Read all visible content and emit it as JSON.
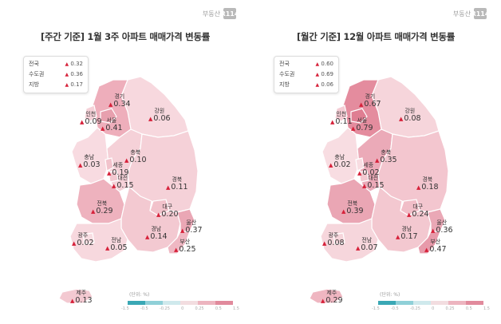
{
  "brand": {
    "text": "부동산",
    "logo": "R114"
  },
  "legend": {
    "unit": "(단위: %)",
    "ticks": [
      "-1.5",
      "-0.5",
      "-0.25",
      "0",
      "0.25",
      "0.5",
      "1.5"
    ],
    "colors": [
      "#3aa8b5",
      "#8fd0d8",
      "#cfe9ec",
      "#f2dde0",
      "#ecb4bf",
      "#e18a9c"
    ]
  },
  "maps": [
    {
      "title": "[주간 기준] 1월 3주 아파트 매매가격 변동률",
      "summary": [
        {
          "label": "전국",
          "value": "0.32"
        },
        {
          "label": "수도권",
          "value": "0.36"
        },
        {
          "label": "지방",
          "value": "0.17"
        }
      ],
      "regions": {
        "gyeonggi": {
          "name": "경기",
          "value": "0.34"
        },
        "incheon": {
          "name": "인천",
          "value": "0.09"
        },
        "seoul": {
          "name": "서울",
          "value": "0.41"
        },
        "gangwon": {
          "name": "강원",
          "value": "0.06"
        },
        "chungbuk": {
          "name": "충북",
          "value": "0.10"
        },
        "chungnam": {
          "name": "충남",
          "value": "0.03"
        },
        "sejong": {
          "name": "세종",
          "value": "0.19"
        },
        "daejeon": {
          "name": "대전",
          "value": "0.15"
        },
        "gyeongbuk": {
          "name": "경북",
          "value": "0.11"
        },
        "jeonbuk": {
          "name": "전북",
          "value": "0.29"
        },
        "daegu": {
          "name": "대구",
          "value": "0.20"
        },
        "ulsan": {
          "name": "울산",
          "value": "0.37"
        },
        "gyeongnam": {
          "name": "경남",
          "value": "0.14"
        },
        "gwangju": {
          "name": "광주",
          "value": "0.02"
        },
        "jeonnam": {
          "name": "전남",
          "value": "0.05"
        },
        "busan": {
          "name": "부산",
          "value": "0.25"
        },
        "jeju": {
          "name": "제주",
          "value": "0.13"
        }
      },
      "colors": {
        "gyeonggi": "#eeaebb",
        "seoul": "#e7a0ae",
        "incheon": "#f5d1d8",
        "gangwon": "#f7d8de",
        "chungbuk": "#f5d1d8",
        "chungnam": "#f8dbe1",
        "sejong": "#f2c3cc",
        "daejeon": "#f3c8d0",
        "gyeongbuk": "#f5d1d8",
        "jeonbuk": "#eeb2be",
        "daegu": "#f2c2cb",
        "ulsan": "#eaa7b5",
        "gyeongnam": "#f3c9d1",
        "gwangju": "#f8dde2",
        "jeonnam": "#f7d8de",
        "busan": "#efb8c3",
        "jeju": "#f3c9d1"
      }
    },
    {
      "title": "[월간 기준] 12월 아파트 매매가격 변동률",
      "summary": [
        {
          "label": "전국",
          "value": "0.60"
        },
        {
          "label": "수도권",
          "value": "0.69"
        },
        {
          "label": "지방",
          "value": "0.06"
        }
      ],
      "regions": {
        "gyeonggi": {
          "name": "경기",
          "value": "0.67"
        },
        "incheon": {
          "name": "인천",
          "value": "0.11"
        },
        "seoul": {
          "name": "서울",
          "value": "0.79"
        },
        "gangwon": {
          "name": "강원",
          "value": "0.08"
        },
        "chungbuk": {
          "name": "충북",
          "value": "0.35"
        },
        "chungnam": {
          "name": "충남",
          "value": "0.02"
        },
        "sejong": {
          "name": "세종",
          "value": "0.02"
        },
        "daejeon": {
          "name": "대전",
          "value": "0.15"
        },
        "gyeongbuk": {
          "name": "경북",
          "value": "0.18"
        },
        "jeonbuk": {
          "name": "전북",
          "value": "0.39"
        },
        "daegu": {
          "name": "대구",
          "value": "0.24"
        },
        "ulsan": {
          "name": "울산",
          "value": "0.36"
        },
        "gyeongnam": {
          "name": "경남",
          "value": "0.17"
        },
        "gwangju": {
          "name": "광주",
          "value": "0.08"
        },
        "jeonnam": {
          "name": "전남",
          "value": "0.07"
        },
        "busan": {
          "name": "부산",
          "value": "0.47"
        },
        "jeju": {
          "name": "제주",
          "value": "0.29"
        }
      },
      "colors": {
        "gyeonggi": "#e48c9e",
        "seoul": "#df7e92",
        "incheon": "#f4ccd4",
        "gangwon": "#f6d5db",
        "chungbuk": "#ebaab8",
        "chungnam": "#f8dde2",
        "sejong": "#f8dde2",
        "daejeon": "#f3c8d0",
        "gyeongbuk": "#f3c6cf",
        "jeonbuk": "#eaa6b4",
        "daegu": "#f1bec8",
        "ulsan": "#eaa8b6",
        "gyeongnam": "#f3c8d0",
        "gwangju": "#f6d5db",
        "jeonnam": "#f6d6dc",
        "busan": "#e79aaa",
        "jeju": "#efb6c1"
      }
    }
  ]
}
